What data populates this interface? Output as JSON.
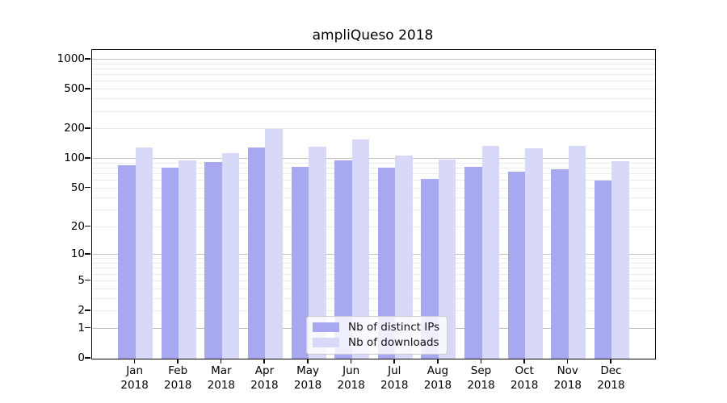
{
  "title": "ampliQueso 2018",
  "style": {
    "series_color_distinct_ips": "#a8a8f0",
    "series_color_downloads": "#d8d8f8",
    "major_gridline_color": "#c2c2c2",
    "minor_gridline_color": "#ebebeb",
    "spine_color": "#0a0a0a",
    "legend_background": "rgba(255,255,255,0.8)",
    "legend_border": "#cccccc"
  },
  "chart_data": {
    "type": "bar",
    "title": "ampliQueso 2018",
    "months": [
      "Jan",
      "Feb",
      "Mar",
      "Apr",
      "May",
      "Jun",
      "Jul",
      "Aug",
      "Sep",
      "Oct",
      "Nov",
      "Dec"
    ],
    "year": "2018",
    "categories": [
      "Jan 2018",
      "Feb 2018",
      "Mar 2018",
      "Apr 2018",
      "May 2018",
      "Jun 2018",
      "Jul 2018",
      "Aug 2018",
      "Sep 2018",
      "Oct 2018",
      "Nov 2018",
      "Dec 2018"
    ],
    "series": [
      {
        "name": "Nb of distinct IPs",
        "color": "#a8a8f0",
        "values": [
          86,
          81,
          93,
          130,
          83,
          96,
          81,
          63,
          83,
          74,
          78,
          60
        ]
      },
      {
        "name": "Nb of downloads",
        "color": "#d8d8f8",
        "values": [
          130,
          96,
          115,
          200,
          133,
          158,
          109,
          98,
          136,
          127,
          135,
          94
        ]
      }
    ],
    "yscale": "symlog-log1p",
    "yticks": [
      0,
      1,
      2,
      5,
      10,
      20,
      50,
      100,
      200,
      500,
      1000
    ],
    "ylim": [
      0,
      1250
    ],
    "xlabel": "",
    "ylabel": "",
    "grid": true,
    "legend_position": "lower center"
  }
}
